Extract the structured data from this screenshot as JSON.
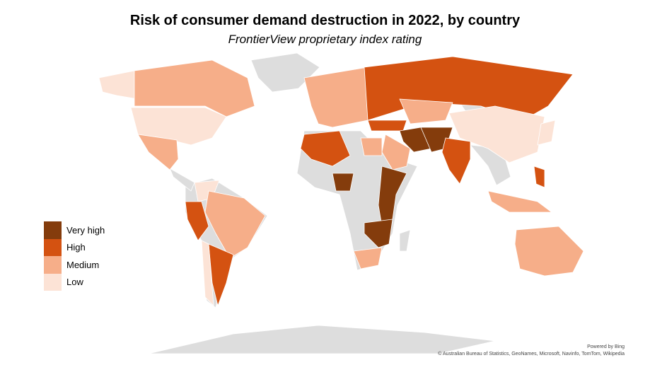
{
  "title": "Risk of consumer demand destruction in 2022, by country",
  "subtitle": "FrontierView proprietary index rating",
  "legend": [
    {
      "label": "Very high",
      "color": "#843C0C"
    },
    {
      "label": "High",
      "color": "#D45211"
    },
    {
      "label": "Medium",
      "color": "#F6AE89"
    },
    {
      "label": "Low",
      "color": "#FCE3D6"
    }
  ],
  "no_data_color": "#DDDDDD",
  "attribution": {
    "powered_by": "Powered by Bing",
    "sources": "© Australian Bureau of Statistics, GeoNames, Microsoft, Navinfo, TomTom, Wikipedia"
  },
  "chart_data": {
    "type": "choropleth",
    "title": "Risk of consumer demand destruction in 2022, by country",
    "categories": [
      "Very high",
      "High",
      "Medium",
      "Low"
    ],
    "legend_position": "left",
    "regions": [
      {
        "id": "USA",
        "rating": "Low"
      },
      {
        "id": "Alaska",
        "rating": "Low"
      },
      {
        "id": "Canada",
        "rating": "Medium"
      },
      {
        "id": "Mexico",
        "rating": "Medium"
      },
      {
        "id": "Colombia",
        "rating": "Low"
      },
      {
        "id": "Brazil",
        "rating": "Medium"
      },
      {
        "id": "Peru",
        "rating": "High"
      },
      {
        "id": "Argentina",
        "rating": "High"
      },
      {
        "id": "Chile",
        "rating": "Low"
      },
      {
        "id": "Europe",
        "rating": "Medium"
      },
      {
        "id": "Russia",
        "rating": "High"
      },
      {
        "id": "Kazakhstan",
        "rating": "Medium"
      },
      {
        "id": "China",
        "rating": "Low"
      },
      {
        "id": "Turkey",
        "rating": "High"
      },
      {
        "id": "Iran",
        "rating": "Very high"
      },
      {
        "id": "Afghanistan-Pakistan",
        "rating": "Very high"
      },
      {
        "id": "Saudi Arabia",
        "rating": "Medium"
      },
      {
        "id": "Egypt",
        "rating": "Medium"
      },
      {
        "id": "India",
        "rating": "High"
      },
      {
        "id": "Morocco-Algeria",
        "rating": "High"
      },
      {
        "id": "Nigeria",
        "rating": "Very high"
      },
      {
        "id": "East Africa",
        "rating": "Very high"
      },
      {
        "id": "Zambia-Mozambique",
        "rating": "Very high"
      },
      {
        "id": "South Africa",
        "rating": "Medium"
      },
      {
        "id": "Australia",
        "rating": "Medium"
      },
      {
        "id": "Indonesia",
        "rating": "Medium"
      },
      {
        "id": "Philippines",
        "rating": "High"
      },
      {
        "id": "Japan",
        "rating": "Low"
      }
    ]
  }
}
